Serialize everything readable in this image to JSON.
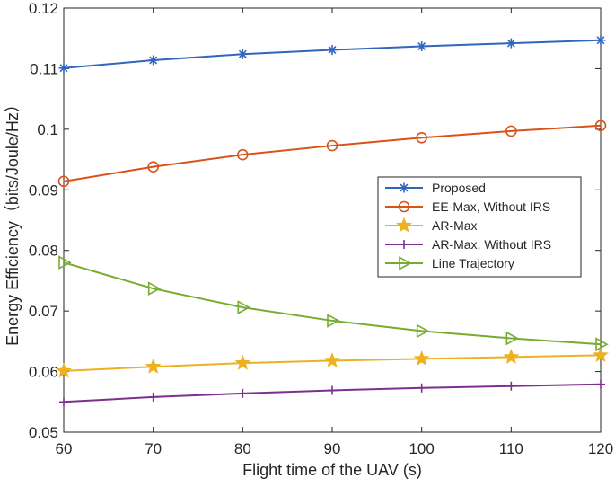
{
  "chart_data": {
    "type": "line",
    "title": "",
    "xlabel": "Flight time of the UAV (s)",
    "ylabel": "Energy Efficiency（bits/Joule/Hz）",
    "xlim": [
      60,
      120
    ],
    "ylim": [
      0.05,
      0.12
    ],
    "xticks": [
      60,
      70,
      80,
      90,
      100,
      110,
      120
    ],
    "xtick_labels": [
      "60",
      "70",
      "80",
      "90",
      "100",
      "110",
      "120"
    ],
    "yticks": [
      0.05,
      0.06,
      0.07,
      0.08,
      0.09,
      0.1,
      0.11,
      0.12
    ],
    "ytick_labels": [
      "0.05",
      "0.06",
      "0.07",
      "0.08",
      "0.09",
      "0.1",
      "0.11",
      "0.12"
    ],
    "grid": false,
    "legend_position": "center-right",
    "x": [
      60,
      70,
      80,
      90,
      100,
      110,
      120
    ],
    "series": [
      {
        "name": "Proposed",
        "color": "#3066BE",
        "marker": "asterisk",
        "values": [
          0.1101,
          0.1114,
          0.1124,
          0.1131,
          0.1137,
          0.1142,
          0.1147
        ]
      },
      {
        "name": "EE-Max, Without IRS",
        "color": "#D95319",
        "marker": "circle",
        "values": [
          0.0914,
          0.0938,
          0.0958,
          0.0973,
          0.0986,
          0.0997,
          0.1006
        ]
      },
      {
        "name": "AR-Max",
        "color": "#EDB120",
        "marker": "star",
        "values": [
          0.0601,
          0.0608,
          0.0614,
          0.0618,
          0.0621,
          0.0624,
          0.0627
        ]
      },
      {
        "name": "AR-Max, Without IRS",
        "color": "#7E2F8E",
        "marker": "plus",
        "values": [
          0.055,
          0.0558,
          0.0564,
          0.0569,
          0.0573,
          0.0576,
          0.0579
        ]
      },
      {
        "name": "Line Trajectory",
        "color": "#77AC30",
        "marker": "triangle-right",
        "values": [
          0.078,
          0.0737,
          0.0706,
          0.0684,
          0.0667,
          0.0655,
          0.0645
        ]
      }
    ]
  }
}
